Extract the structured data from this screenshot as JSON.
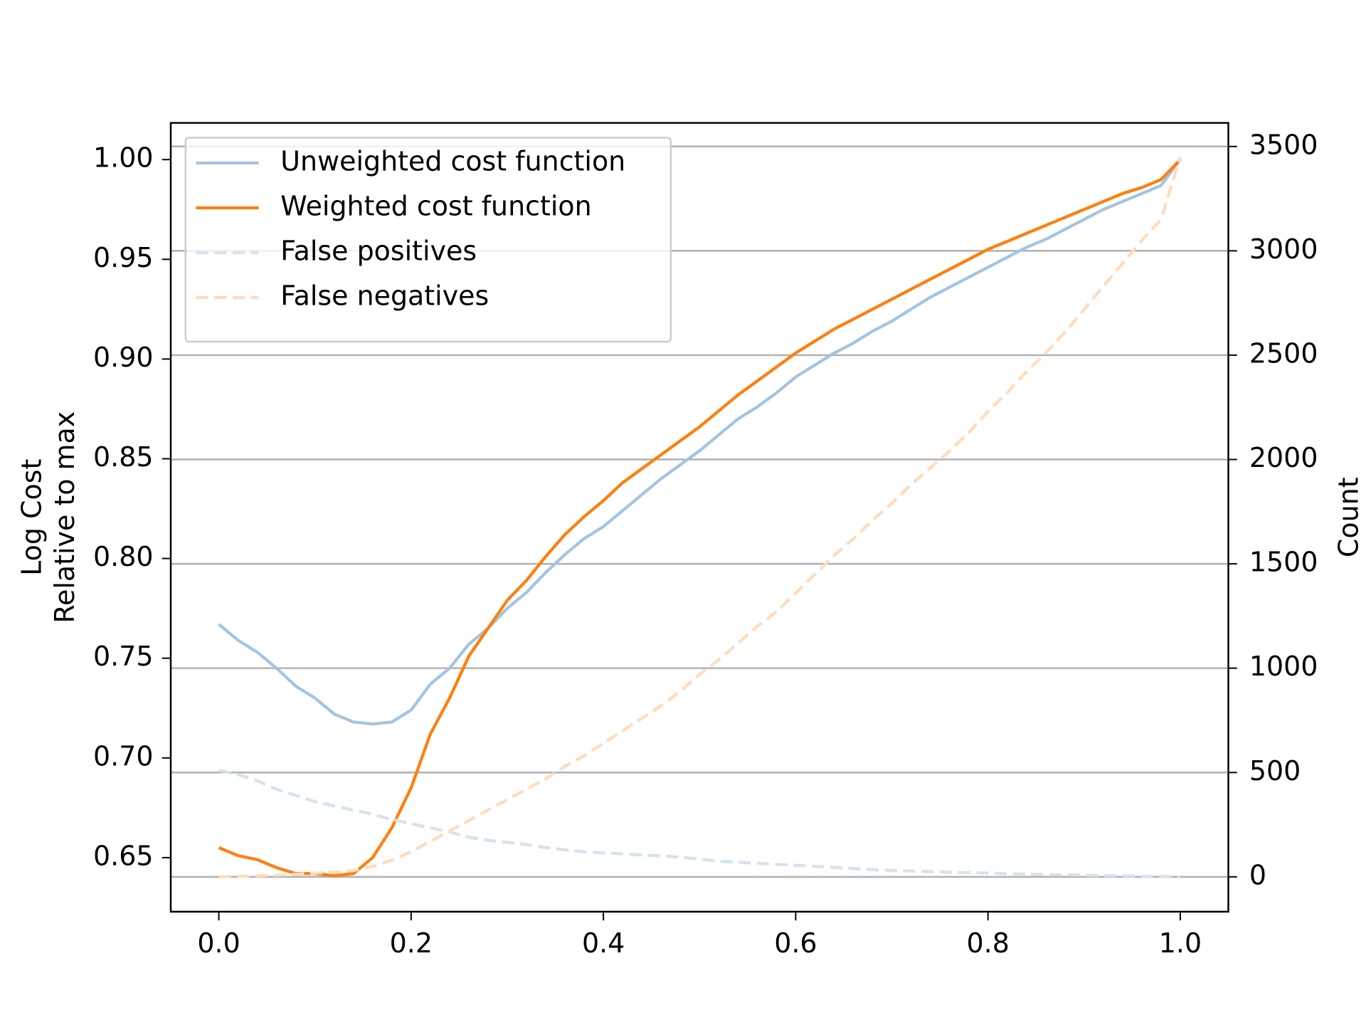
{
  "chart_data": {
    "type": "line",
    "ylabel": [
      "Log Cost",
      "Relative to max"
    ],
    "y2label": "Count",
    "x": [
      0,
      0.02,
      0.04,
      0.06,
      0.08,
      0.1,
      0.12,
      0.14,
      0.16,
      0.18,
      0.2,
      0.22,
      0.24,
      0.26,
      0.28,
      0.3,
      0.32,
      0.34,
      0.36,
      0.38,
      0.4,
      0.42,
      0.44,
      0.46,
      0.48,
      0.5,
      0.52,
      0.54,
      0.56,
      0.58,
      0.6,
      0.62,
      0.64,
      0.66,
      0.68,
      0.7,
      0.72,
      0.74,
      0.76,
      0.78,
      0.8,
      0.82,
      0.84,
      0.86,
      0.88,
      0.9,
      0.92,
      0.94,
      0.96,
      0.98,
      1.0
    ],
    "series": [
      {
        "name": "Unweighted cost function",
        "color": "#a5c4e0",
        "linestyle": "solid",
        "axis": "y",
        "values": [
          0.767,
          0.759,
          0.753,
          0.745,
          0.736,
          0.73,
          0.722,
          0.718,
          0.717,
          0.718,
          0.724,
          0.737,
          0.745,
          0.757,
          0.765,
          0.775,
          0.783,
          0.793,
          0.802,
          0.81,
          0.816,
          0.824,
          0.832,
          0.84,
          0.847,
          0.854,
          0.862,
          0.87,
          0.876,
          0.883,
          0.891,
          0.897,
          0.903,
          0.908,
          0.914,
          0.919,
          0.925,
          0.931,
          0.936,
          0.941,
          0.946,
          0.951,
          0.956,
          0.96,
          0.965,
          0.97,
          0.975,
          0.979,
          0.983,
          0.987,
          1.0
        ]
      },
      {
        "name": "Weighted cost function",
        "color": "#ff7f0e",
        "linestyle": "solid",
        "axis": "y",
        "values": [
          0.655,
          0.651,
          0.649,
          0.645,
          0.642,
          0.642,
          0.641,
          0.642,
          0.65,
          0.665,
          0.685,
          0.712,
          0.73,
          0.751,
          0.765,
          0.779,
          0.789,
          0.801,
          0.812,
          0.821,
          0.829,
          0.838,
          0.845,
          0.852,
          0.859,
          0.866,
          0.874,
          0.882,
          0.889,
          0.896,
          0.903,
          0.909,
          0.915,
          0.92,
          0.925,
          0.93,
          0.935,
          0.94,
          0.945,
          0.95,
          0.955,
          0.959,
          0.963,
          0.967,
          0.971,
          0.975,
          0.979,
          0.983,
          0.986,
          0.99,
          1.0
        ]
      },
      {
        "name": "False positives",
        "color": "#d4e3f0",
        "linestyle": "dashed",
        "axis": "y2",
        "values": [
          510,
          490,
          460,
          420,
          390,
          360,
          340,
          320,
          300,
          275,
          255,
          235,
          215,
          190,
          175,
          165,
          155,
          140,
          130,
          120,
          115,
          110,
          105,
          100,
          95,
          85,
          75,
          70,
          65,
          60,
          55,
          50,
          45,
          40,
          35,
          30,
          28,
          25,
          22,
          20,
          18,
          15,
          13,
          11,
          10,
          8,
          6,
          5,
          3,
          2,
          0
        ]
      },
      {
        "name": "False negatives",
        "color": "#ffdcbd",
        "linestyle": "dashed",
        "axis": "y2",
        "values": [
          0,
          2,
          5,
          8,
          12,
          18,
          22,
          30,
          50,
          80,
          120,
          170,
          220,
          270,
          320,
          370,
          420,
          470,
          530,
          580,
          640,
          700,
          760,
          820,
          890,
          970,
          1040,
          1120,
          1200,
          1270,
          1360,
          1450,
          1540,
          1620,
          1710,
          1790,
          1880,
          1960,
          2040,
          2130,
          2230,
          2320,
          2420,
          2510,
          2610,
          2720,
          2830,
          2940,
          3050,
          3150,
          3450
        ]
      }
    ],
    "xlim": [
      -0.05,
      1.05
    ],
    "xticks": [
      {
        "value": 0,
        "label": "0.0"
      },
      0.2,
      0.4,
      0.6,
      0.8,
      {
        "value": 1,
        "label": "1.0"
      }
    ],
    "ylim": [
      0.6229,
      1.0184
    ],
    "yticks": [
      0.65,
      {
        "value": 0.7,
        "label": "0.70"
      },
      0.75,
      {
        "value": 0.8,
        "label": "0.80"
      },
      0.85,
      {
        "value": 0.9,
        "label": "0.90"
      },
      0.95,
      {
        "value": 1,
        "label": "1.00"
      }
    ],
    "y2lim": [
      -167,
      3613
    ],
    "y2ticks": [
      0,
      500,
      1000,
      1500,
      2000,
      2500,
      3000,
      3500
    ],
    "grid": "y2",
    "legend": "upper-left"
  }
}
